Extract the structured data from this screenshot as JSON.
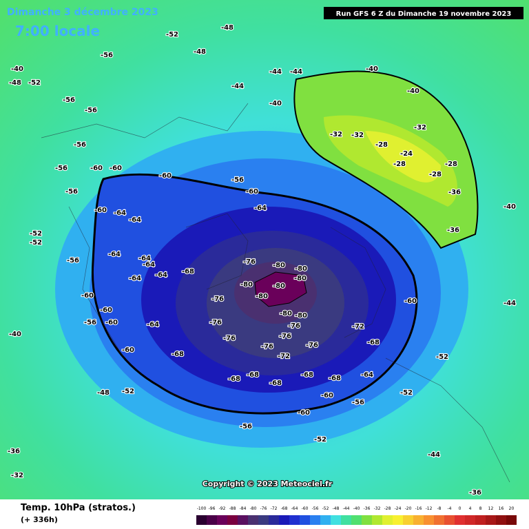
{
  "header": {
    "date": "Dimanche 3 décembre 2023",
    "local_time": "7:00 locale",
    "run": "Run GFS 6 Z du Dimanche 19 novembre 2023"
  },
  "footer": {
    "field": "Temp. 10hPa (stratos.)",
    "lead": "(+ 336h)",
    "copyright": "Copyright © 2023 Meteociel.fr"
  },
  "legend": {
    "labels": [
      -100,
      -96,
      -92,
      -88,
      -84,
      -80,
      -76,
      -72,
      -68,
      -64,
      -60,
      -56,
      -52,
      -48,
      -44,
      -40,
      -36,
      -32,
      -28,
      -24,
      -20,
      -16,
      -12,
      -8,
      -4,
      0,
      4,
      8,
      12,
      16,
      20
    ],
    "colors": [
      "#2a0030",
      "#4a0048",
      "#6a005a",
      "#7a0040",
      "#5a1060",
      "#4a3070",
      "#3a3a80",
      "#2a2a9a",
      "#1a1ab8",
      "#2030d0",
      "#2050e0",
      "#2a80f0",
      "#30b0f0",
      "#40e0e0",
      "#40e0a0",
      "#50e070",
      "#80e040",
      "#b0e830",
      "#e0f030",
      "#f8f030",
      "#f8d030",
      "#f8b030",
      "#f89030",
      "#f07030",
      "#e85030",
      "#e03030",
      "#d02828",
      "#c02020",
      "#a81818",
      "#901010",
      "#780808"
    ]
  },
  "contour_labels": [
    -80,
    -80,
    -80,
    -80,
    -80,
    -80,
    -80,
    -80,
    -76,
    -76,
    -76,
    -76,
    -76,
    -76,
    -76,
    -76,
    -72,
    -72,
    -68,
    -68,
    -68,
    -68,
    -68,
    -68,
    -68,
    -68,
    -64,
    -64,
    -64,
    -64,
    -64,
    -64,
    -64,
    -64,
    -64,
    -64,
    -60,
    -60,
    -60,
    -60,
    -60,
    -60,
    -60,
    -60,
    -60,
    -60,
    -60,
    -60,
    -56,
    -56,
    -56,
    -56,
    -56,
    -56,
    -56,
    -56,
    -56,
    -52,
    -52,
    -52,
    -52,
    -52,
    -40,
    -32,
    -32,
    -32,
    -28,
    -24,
    -28,
    -28,
    -28,
    -36,
    -36,
    -40,
    -40,
    -44,
    -44,
    -40,
    -44,
    -36,
    -32,
    -36,
    -40,
    -48,
    -52,
    -44,
    -48,
    -48,
    -56,
    -52,
    -56,
    -48,
    -52,
    -40,
    -44
  ]
}
